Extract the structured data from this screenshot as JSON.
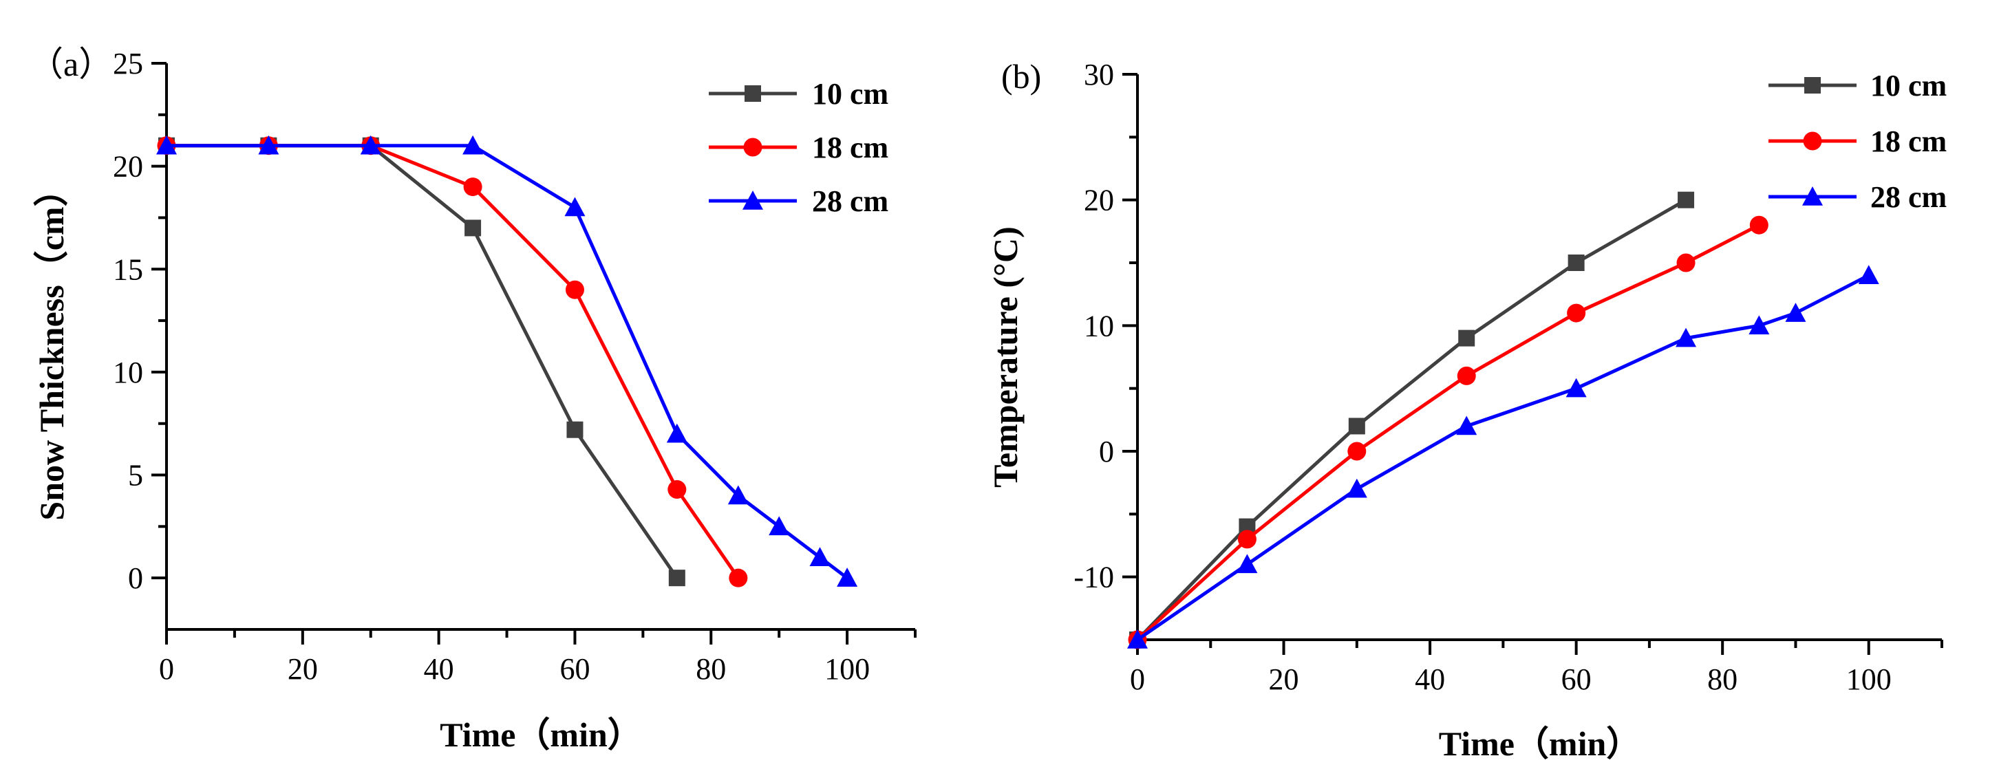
{
  "chart_data": [
    {
      "type": "line",
      "panel_label": "（a）",
      "title": "",
      "xlabel": "Time（min）",
      "ylabel": "Snow Thickness（cm）",
      "xlim": [
        0,
        110
      ],
      "ylim": [
        -2.5,
        25
      ],
      "xticks": [
        0,
        20,
        40,
        60,
        80,
        100
      ],
      "xminor": [
        10,
        30,
        50,
        70,
        90,
        110
      ],
      "yticks": [
        0,
        5,
        10,
        15,
        20,
        25
      ],
      "yminor": [
        2.5,
        7.5,
        12.5,
        17.5,
        22.5
      ],
      "legend_position": "top-right",
      "series": [
        {
          "name": "10 cm",
          "color": "#404040",
          "marker": "square",
          "x": [
            0,
            15,
            30,
            45,
            60,
            75
          ],
          "y": [
            21,
            21,
            21,
            17,
            7.2,
            0
          ]
        },
        {
          "name": "18 cm",
          "color": "#ff0000",
          "marker": "circle",
          "x": [
            0,
            15,
            30,
            45,
            60,
            75,
            84
          ],
          "y": [
            21,
            21,
            21,
            19,
            14,
            4.3,
            0
          ]
        },
        {
          "name": "28 cm",
          "color": "#0000ff",
          "marker": "triangle",
          "x": [
            0,
            15,
            30,
            45,
            60,
            75,
            84,
            90,
            96,
            100
          ],
          "y": [
            21,
            21,
            21,
            21,
            18,
            7,
            4,
            2.5,
            1,
            0
          ]
        }
      ]
    },
    {
      "type": "line",
      "panel_label": "(b)",
      "title": "",
      "xlabel": "Time（min）",
      "ylabel": "Temperature (°C)",
      "xlim": [
        0,
        110
      ],
      "ylim": [
        -15,
        30
      ],
      "xticks": [
        0,
        20,
        40,
        60,
        80,
        100
      ],
      "xminor": [
        10,
        30,
        50,
        70,
        90,
        110
      ],
      "yticks": [
        -10,
        0,
        10,
        20,
        30
      ],
      "yminor": [
        -15,
        -5,
        5,
        15,
        25
      ],
      "legend_position": "top-right",
      "series": [
        {
          "name": "10 cm",
          "color": "#404040",
          "marker": "square",
          "x": [
            0,
            15,
            30,
            45,
            60,
            75
          ],
          "y": [
            -15,
            -6,
            2,
            9,
            15,
            20
          ]
        },
        {
          "name": "18 cm",
          "color": "#ff0000",
          "marker": "circle",
          "x": [
            0,
            15,
            30,
            45,
            60,
            75,
            85
          ],
          "y": [
            -15,
            -7,
            0,
            6,
            11,
            15,
            18
          ]
        },
        {
          "name": "28 cm",
          "color": "#0000ff",
          "marker": "triangle",
          "x": [
            0,
            15,
            30,
            45,
            60,
            75,
            85,
            90,
            100
          ],
          "y": [
            -15,
            -9,
            -3,
            2,
            5,
            9,
            10,
            11,
            14
          ]
        }
      ]
    }
  ]
}
